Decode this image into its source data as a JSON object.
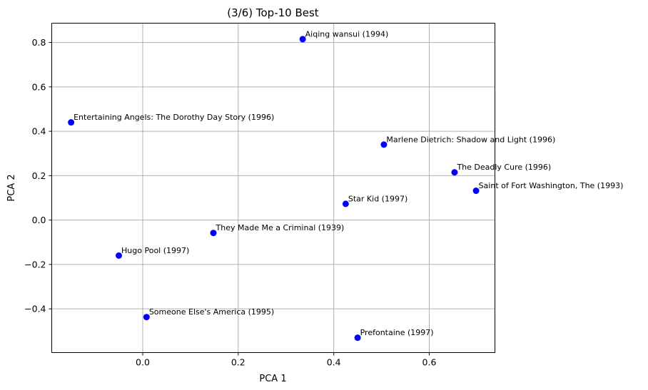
{
  "chart_data": {
    "type": "scatter",
    "title": "(3/6) Top-10 Best",
    "xlabel": "PCA 1",
    "ylabel": "PCA 2",
    "xlim": [
      -0.1905,
      0.7375
    ],
    "ylim": [
      -0.597,
      0.887
    ],
    "xticks": [
      0.0,
      0.2,
      0.4,
      0.6
    ],
    "xtick_labels": [
      "0.0",
      "0.2",
      "0.4",
      "0.6"
    ],
    "yticks": [
      -0.4,
      -0.2,
      0.0,
      0.2,
      0.4,
      0.6,
      0.8
    ],
    "ytick_labels": [
      "−0.4",
      "−0.2",
      "0.0",
      "0.2",
      "0.4",
      "0.6",
      "0.8"
    ],
    "grid": true,
    "marker_color": "#0000ff",
    "points": [
      {
        "label": "Aiqing wansui (1994)",
        "x": 0.335,
        "y": 0.815
      },
      {
        "label": "Entertaining Angels: The Dorothy Day Story (1996)",
        "x": -0.15,
        "y": 0.44
      },
      {
        "label": "Marlene Dietrich: Shadow and Light (1996)",
        "x": 0.505,
        "y": 0.34
      },
      {
        "label": "The Deadly Cure (1996)",
        "x": 0.653,
        "y": 0.215
      },
      {
        "label": "Saint of Fort Washington, The (1993)",
        "x": 0.698,
        "y": 0.132
      },
      {
        "label": "Star Kid (1997)",
        "x": 0.425,
        "y": 0.073
      },
      {
        "label": "They Made Me a Criminal (1939)",
        "x": 0.148,
        "y": -0.058
      },
      {
        "label": "Hugo Pool (1997)",
        "x": -0.05,
        "y": -0.16
      },
      {
        "label": "Someone Else's America (1995)",
        "x": 0.008,
        "y": -0.437
      },
      {
        "label": "Prefontaine (1997)",
        "x": 0.45,
        "y": -0.53
      }
    ]
  }
}
